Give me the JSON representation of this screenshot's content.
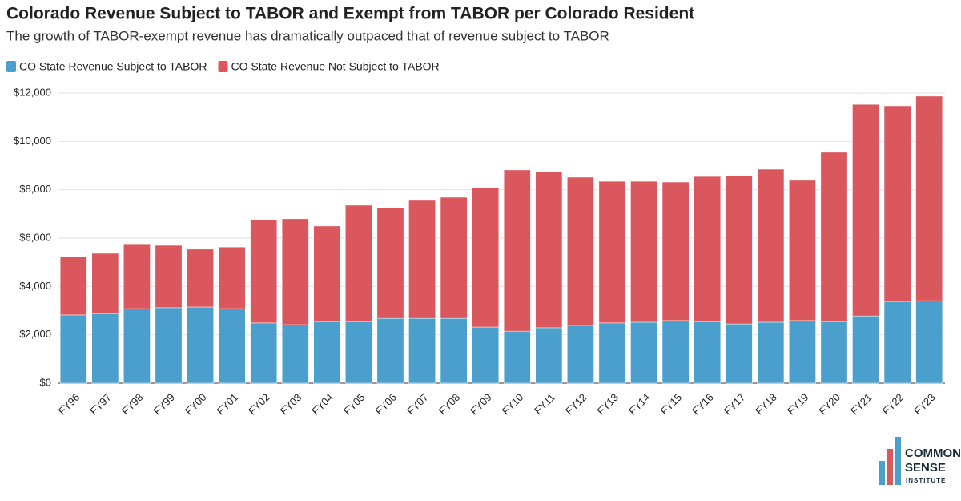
{
  "chart_data": {
    "type": "stacked-bar",
    "title": "Colorado Revenue Subject to TABOR and Exempt from TABOR per Colorado Resident",
    "subtitle": "The growth of TABOR-exempt revenue has dramatically outpaced that of revenue subject to TABOR",
    "categories": [
      "FY96",
      "FY97",
      "FY98",
      "FY99",
      "FY00",
      "FY01",
      "FY02",
      "FY03",
      "FY04",
      "FY05",
      "FY06",
      "FY07",
      "FY08",
      "FY09",
      "FY10",
      "FY11",
      "FY12",
      "FY13",
      "FY14",
      "FY15",
      "FY16",
      "FY17",
      "FY18",
      "FY19",
      "FY20",
      "FY21",
      "FY22",
      "FY23"
    ],
    "series": [
      {
        "name": "CO State Revenue Subject to TABOR",
        "color": "#4a9fcc",
        "values": [
          2820,
          2880,
          3080,
          3120,
          3150,
          3080,
          2490,
          2420,
          2550,
          2550,
          2680,
          2680,
          2680,
          2320,
          2150,
          2290,
          2390,
          2490,
          2520,
          2590,
          2550,
          2450,
          2520,
          2590,
          2550,
          2780,
          3380,
          3410
        ]
      },
      {
        "name": "CO State Revenue Not Subject to TABOR",
        "color": "#d9575d",
        "values": [
          2420,
          2490,
          2650,
          2580,
          2390,
          2550,
          4270,
          4380,
          3950,
          4810,
          4580,
          4880,
          5010,
          5770,
          6670,
          6460,
          6130,
          5860,
          5830,
          5730,
          6000,
          6130,
          6330,
          5800,
          7000,
          8750,
          8090,
          8460
        ]
      }
    ],
    "ylim": [
      0,
      12000
    ],
    "yticks": [
      {
        "value": 0,
        "label": "$0"
      },
      {
        "value": 2000,
        "label": "$2,000"
      },
      {
        "value": 4000,
        "label": "$4,000"
      },
      {
        "value": 6000,
        "label": "$6,000"
      },
      {
        "value": 8000,
        "label": "$8,000"
      },
      {
        "value": 10000,
        "label": "$10,000"
      },
      {
        "value": 12000,
        "label": "$12,000"
      }
    ],
    "grid": true
  },
  "brand": [
    "COMMON",
    "SENSE",
    "INSTITUTE"
  ]
}
